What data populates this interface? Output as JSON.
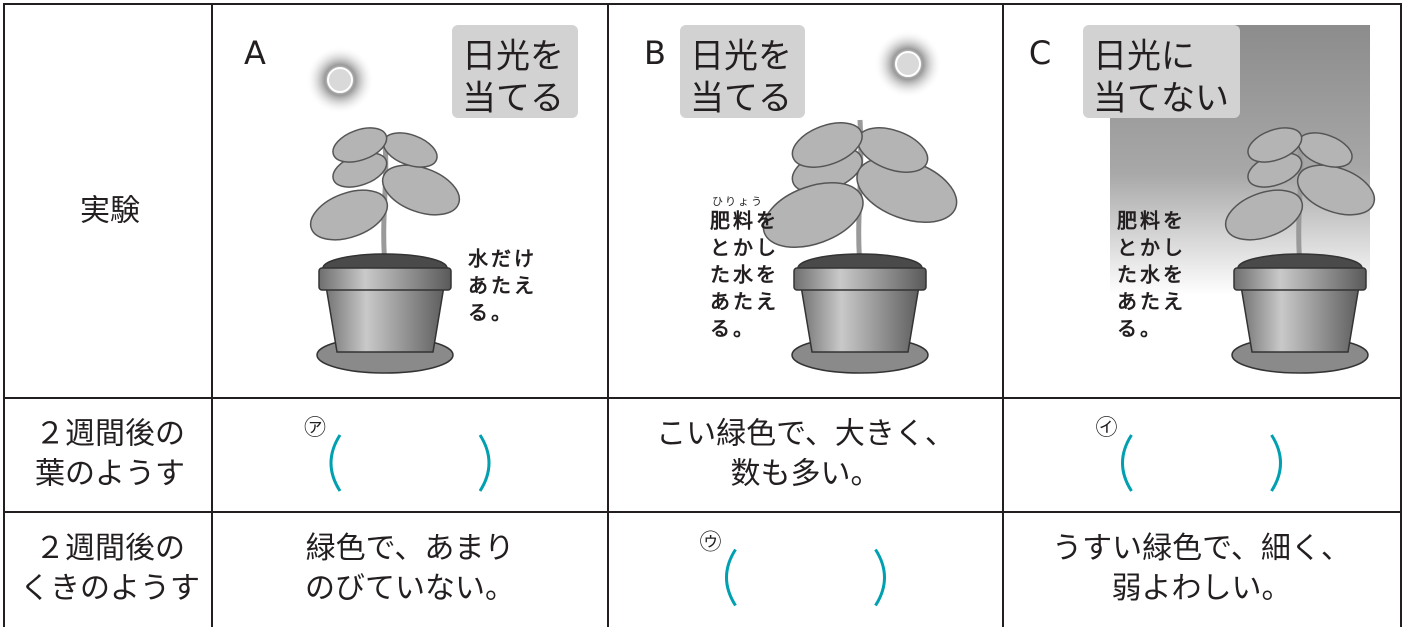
{
  "table": {
    "header_label": "実験",
    "experiments": [
      {
        "letter": "A",
        "sunlight": [
          "日光を",
          "当てる"
        ],
        "note": [
          "水だけ",
          "あたえ",
          "る。"
        ]
      },
      {
        "letter": "B",
        "sunlight": [
          "日光を",
          "当てる"
        ],
        "ruby": "ひりょう",
        "note": [
          "肥料を",
          "とかし",
          "た水を",
          "あたえ",
          "る。"
        ]
      },
      {
        "letter": "C",
        "sunlight": [
          "日光に",
          "当てない"
        ],
        "note": [
          "肥料を",
          "とかし",
          "た水を",
          "あたえ",
          "る。"
        ]
      }
    ],
    "rows": [
      {
        "label": [
          "２週間後の",
          "葉のようす"
        ],
        "cells": [
          {
            "marker": "㋐"
          },
          {
            "text": [
              "こい緑色で、大きく、",
              "数も多い。"
            ]
          },
          {
            "marker": "㋑"
          }
        ]
      },
      {
        "label": [
          "２週間後の",
          "くきのようす"
        ],
        "cells": [
          {
            "text": [
              "緑色で、あまり",
              "のびていない。"
            ]
          },
          {
            "marker": "㋒"
          },
          {
            "text": [
              "うすい緑色で、細く、",
              "弱よわしい。"
            ]
          }
        ]
      }
    ]
  }
}
